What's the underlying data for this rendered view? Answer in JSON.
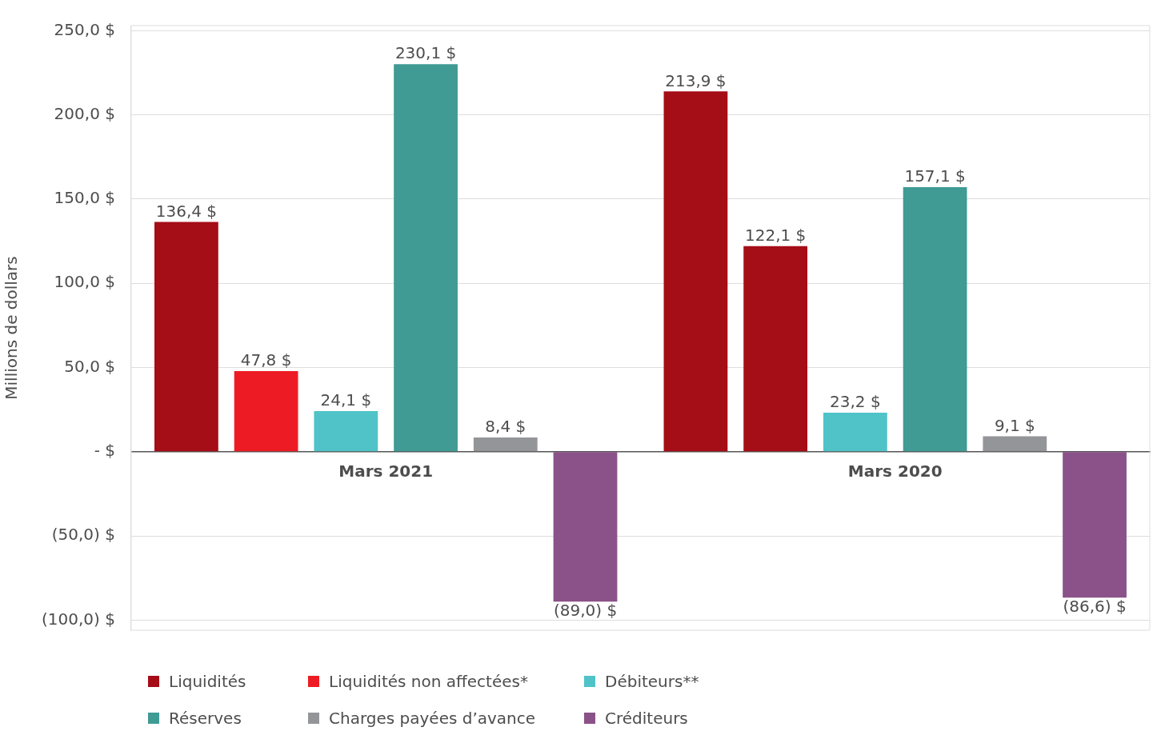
{
  "chart_data": {
    "type": "bar",
    "ylabel": "Millions de dollars",
    "categories": [
      "Mars 2021",
      "Mars 2020"
    ],
    "series": [
      {
        "name": "Liquidités",
        "color": "#a50d17",
        "values": [
          136.4,
          213.9
        ],
        "value_labels": [
          "136,4 $",
          "213,9 $"
        ]
      },
      {
        "name": "Liquidités non affectées*",
        "color": "#ed1c24",
        "colors": [
          "#ed1c24",
          "#a50d17"
        ],
        "values": [
          47.8,
          122.1
        ],
        "value_labels": [
          "47,8 $",
          "122,1 $"
        ]
      },
      {
        "name": "Débiteurs**",
        "color": "#4fc3c8",
        "values": [
          24.1,
          23.2
        ],
        "value_labels": [
          "24,1 $",
          "23,2 $"
        ]
      },
      {
        "name": "Réserves",
        "color": "#3f9b94",
        "values": [
          230.1,
          157.1
        ],
        "value_labels": [
          "230,1 $",
          "157,1 $"
        ]
      },
      {
        "name": "Charges payées d’avance",
        "color": "#939598",
        "values": [
          8.4,
          9.1
        ],
        "value_labels": [
          "8,4 $",
          "9,1 $"
        ]
      },
      {
        "name": "Créditeurs",
        "color": "#8a5289",
        "values": [
          -89.0,
          -86.6
        ],
        "value_labels": [
          "(89,0) $",
          "(86,6) $"
        ]
      }
    ],
    "ylim": [
      -106,
      253
    ],
    "yticks": [
      {
        "value": -100,
        "label": "(100,0) $"
      },
      {
        "value": -50,
        "label": "(50,0) $"
      },
      {
        "value": 0,
        "label": "- $"
      },
      {
        "value": 50,
        "label": "50,0 $"
      },
      {
        "value": 100,
        "label": "100,0 $"
      },
      {
        "value": 150,
        "label": "150,0 $"
      },
      {
        "value": 200,
        "label": "200,0 $"
      },
      {
        "value": 250,
        "label": "250,0 $"
      }
    ],
    "grid": "y",
    "legend": "bottom"
  }
}
